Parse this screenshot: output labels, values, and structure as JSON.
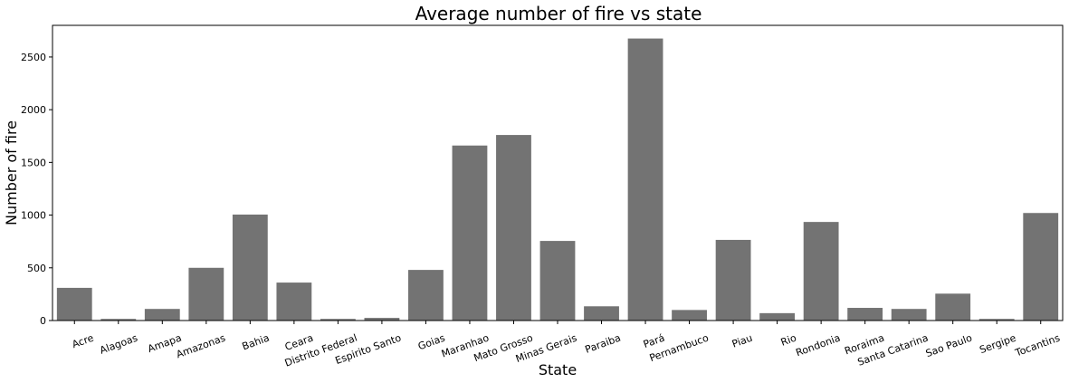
{
  "chart_data": {
    "type": "bar",
    "title": "Average number of fire vs state",
    "xlabel": "State",
    "ylabel": "Number of fire",
    "ylim": [
      0,
      2800
    ],
    "yticks": [
      0,
      500,
      1000,
      1500,
      2000,
      2500
    ],
    "grid": false,
    "color": "#737373",
    "categories": [
      "Acre",
      "Alagoas",
      "Amapa",
      "Amazonas",
      "Bahia",
      "Ceara",
      "Distrito Federal",
      "Espirito Santo",
      "Goias",
      "Maranhao",
      "Mato Grosso",
      "Minas Gerais",
      "Paraiba",
      "Pará",
      "Pernambuco",
      "Piau",
      "Rio",
      "Rondonia",
      "Roraima",
      "Santa Catarina",
      "Sao Paulo",
      "Sergipe",
      "Tocantins"
    ],
    "values": [
      310,
      15,
      110,
      500,
      1005,
      360,
      15,
      25,
      480,
      1660,
      1760,
      755,
      135,
      2675,
      100,
      765,
      70,
      935,
      120,
      110,
      255,
      15,
      1020
    ]
  }
}
